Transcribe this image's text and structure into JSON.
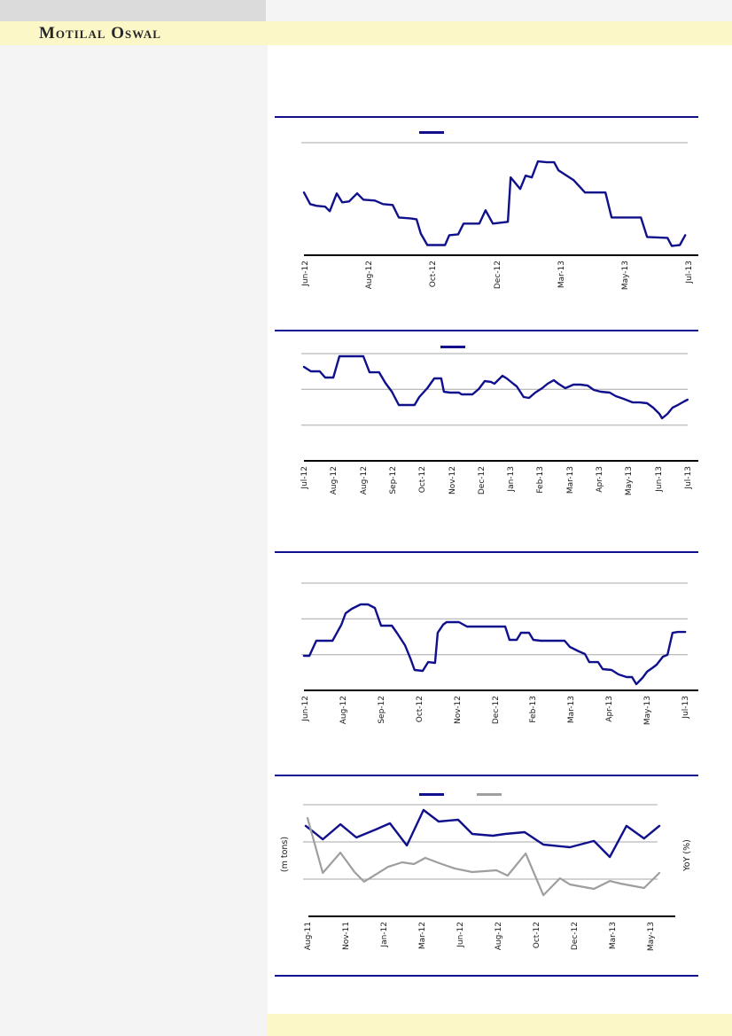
{
  "header": {
    "brand": "Motilal Oswal"
  },
  "colors": {
    "accent_navy": "#10108c",
    "series_gray": "#9e9e9e",
    "gridline_gray": "#a7a7a7",
    "banner_yellow": "#fcf7c7",
    "panel_gray": "#f4f4f4",
    "top_box_gray": "#dbdbdb"
  },
  "chart_data": [
    {
      "type": "line",
      "title": "",
      "value_scale": "y normalized: 0 = x-axis, 100 = top gridline (no y-axis tick labels visible)",
      "x_labels": [
        "Jun-12",
        "Aug-12",
        "Oct-12",
        "Dec-12",
        "Mar-13",
        "May-13",
        "Jul-13"
      ],
      "gridlines": [
        100
      ],
      "legend": [
        {
          "color": "#10108c",
          "label": ""
        }
      ],
      "series": [
        {
          "name": "navy-line",
          "color": "#10108c",
          "points": [
            [
              0,
              55.6
            ],
            [
              0.016,
              45.2
            ],
            [
              0.032,
              43.7
            ],
            [
              0.055,
              42.9
            ],
            [
              0.067,
              38.9
            ],
            [
              0.085,
              54.8
            ],
            [
              0.099,
              46.8
            ],
            [
              0.117,
              47.6
            ],
            [
              0.138,
              54.8
            ],
            [
              0.154,
              49.2
            ],
            [
              0.184,
              48.4
            ],
            [
              0.205,
              45.2
            ],
            [
              0.23,
              44.4
            ],
            [
              0.246,
              33.3
            ],
            [
              0.276,
              32.5
            ],
            [
              0.292,
              31.7
            ],
            [
              0.303,
              19
            ],
            [
              0.32,
              8.7
            ],
            [
              0.366,
              8.7
            ],
            [
              0.377,
              17.5
            ],
            [
              0.4,
              18.3
            ],
            [
              0.414,
              27.8
            ],
            [
              0.455,
              27.8
            ],
            [
              0.471,
              39.7
            ],
            [
              0.49,
              27.8
            ],
            [
              0.529,
              29.4
            ],
            [
              0.536,
              69
            ],
            [
              0.561,
              58.7
            ],
            [
              0.575,
              70.6
            ],
            [
              0.591,
              69
            ],
            [
              0.607,
              83.3
            ],
            [
              0.63,
              82.5
            ],
            [
              0.649,
              82.5
            ],
            [
              0.66,
              75.4
            ],
            [
              0.699,
              66.7
            ],
            [
              0.729,
              55.6
            ],
            [
              0.782,
              55.6
            ],
            [
              0.798,
              33.3
            ],
            [
              0.874,
              33.3
            ],
            [
              0.89,
              15.9
            ],
            [
              0.943,
              15.1
            ],
            [
              0.954,
              7.9
            ],
            [
              0.975,
              8.7
            ],
            [
              0.989,
              17.5
            ]
          ]
        }
      ]
    },
    {
      "type": "line",
      "title": "",
      "value_scale": "y normalized: 0 = x-axis, 100 = top gridline (no y-axis tick labels visible)",
      "x_labels": [
        "Jul-12",
        "Aug-12",
        "Aug-12",
        "Sep-12",
        "Oct-12",
        "Nov-12",
        "Dec-12",
        "Jan-13",
        "Feb-13",
        "Mar-13",
        "Apr-13",
        "May-13",
        "Jun-13",
        "Jul-13"
      ],
      "gridlines": [
        100,
        66.7,
        33.3
      ],
      "legend": [
        {
          "color": "#10108c",
          "label": ""
        }
      ],
      "series": [
        {
          "name": "navy-line",
          "color": "#10108c",
          "points": [
            [
              0,
              87.6
            ],
            [
              0.018,
              83.5
            ],
            [
              0.041,
              83.5
            ],
            [
              0.055,
              77.7
            ],
            [
              0.076,
              77.7
            ],
            [
              0.092,
              97.5
            ],
            [
              0.154,
              97.5
            ],
            [
              0.17,
              82.6
            ],
            [
              0.195,
              82.6
            ],
            [
              0.211,
              72.7
            ],
            [
              0.228,
              64.5
            ],
            [
              0.246,
              52.1
            ],
            [
              0.287,
              52.1
            ],
            [
              0.299,
              59.5
            ],
            [
              0.32,
              67.8
            ],
            [
              0.338,
              76.9
            ],
            [
              0.356,
              76.9
            ],
            [
              0.363,
              64.5
            ],
            [
              0.379,
              63.6
            ],
            [
              0.402,
              63.6
            ],
            [
              0.409,
              62
            ],
            [
              0.437,
              62
            ],
            [
              0.453,
              66.9
            ],
            [
              0.469,
              74.4
            ],
            [
              0.485,
              73.6
            ],
            [
              0.494,
              71.9
            ],
            [
              0.515,
              79.3
            ],
            [
              0.526,
              76.9
            ],
            [
              0.543,
              71.9
            ],
            [
              0.552,
              69.4
            ],
            [
              0.57,
              59.5
            ],
            [
              0.584,
              58.7
            ],
            [
              0.6,
              63.6
            ],
            [
              0.618,
              67.8
            ],
            [
              0.632,
              71.9
            ],
            [
              0.648,
              75.2
            ],
            [
              0.66,
              71.9
            ],
            [
              0.678,
              67.8
            ],
            [
              0.699,
              71.1
            ],
            [
              0.717,
              71.1
            ],
            [
              0.736,
              70.2
            ],
            [
              0.752,
              66.1
            ],
            [
              0.77,
              64.5
            ],
            [
              0.793,
              63.6
            ],
            [
              0.809,
              60.3
            ],
            [
              0.828,
              57.9
            ],
            [
              0.853,
              54.5
            ],
            [
              0.871,
              54.5
            ],
            [
              0.89,
              53.7
            ],
            [
              0.906,
              49.6
            ],
            [
              0.922,
              43.8
            ],
            [
              0.929,
              39.7
            ],
            [
              0.943,
              43.8
            ],
            [
              0.956,
              49.6
            ],
            [
              0.97,
              52.1
            ],
            [
              0.986,
              55.4
            ],
            [
              0.995,
              57
            ]
          ]
        }
      ]
    },
    {
      "type": "line",
      "title": "",
      "value_scale": "y normalized: 0 = x-axis, 100 = top gridline (no y-axis tick labels visible)",
      "x_labels": [
        "Jun-12",
        "Aug-12",
        "Sep-12",
        "Oct-12",
        "Nov-12",
        "Dec-12",
        "Feb-13",
        "Mar-13",
        "Apr-13",
        "May-13",
        "Jul-13"
      ],
      "gridlines": [
        100,
        66.7,
        33.3
      ],
      "legend": [],
      "series": [
        {
          "name": "navy-line",
          "color": "#10108c",
          "points": [
            [
              0,
              32.2
            ],
            [
              0.014,
              32.2
            ],
            [
              0.032,
              46.3
            ],
            [
              0.074,
              46.3
            ],
            [
              0.097,
              61.2
            ],
            [
              0.108,
              71.9
            ],
            [
              0.124,
              76
            ],
            [
              0.147,
              80.2
            ],
            [
              0.166,
              80.2
            ],
            [
              0.184,
              76.9
            ],
            [
              0.2,
              60.3
            ],
            [
              0.228,
              60.3
            ],
            [
              0.241,
              53.7
            ],
            [
              0.262,
              42.1
            ],
            [
              0.276,
              29.8
            ],
            [
              0.287,
              19
            ],
            [
              0.308,
              18.2
            ],
            [
              0.322,
              26.4
            ],
            [
              0.34,
              25.6
            ],
            [
              0.347,
              53.7
            ],
            [
              0.361,
              61.2
            ],
            [
              0.37,
              63.6
            ],
            [
              0.402,
              63.6
            ],
            [
              0.423,
              59.5
            ],
            [
              0.522,
              59.5
            ],
            [
              0.533,
              47.1
            ],
            [
              0.552,
              47.1
            ],
            [
              0.563,
              53.7
            ],
            [
              0.584,
              53.7
            ],
            [
              0.595,
              47.1
            ],
            [
              0.614,
              46.3
            ],
            [
              0.676,
              46.3
            ],
            [
              0.69,
              40.5
            ],
            [
              0.713,
              36.4
            ],
            [
              0.729,
              33.9
            ],
            [
              0.74,
              26.4
            ],
            [
              0.763,
              26.4
            ],
            [
              0.775,
              19.8
            ],
            [
              0.798,
              19
            ],
            [
              0.816,
              14.9
            ],
            [
              0.837,
              12.4
            ],
            [
              0.851,
              12.4
            ],
            [
              0.862,
              5.8
            ],
            [
              0.878,
              11.6
            ],
            [
              0.89,
              17.4
            ],
            [
              0.906,
              21.5
            ],
            [
              0.915,
              24
            ],
            [
              0.931,
              31.4
            ],
            [
              0.943,
              33.1
            ],
            [
              0.956,
              53.7
            ],
            [
              0.97,
              54.5
            ],
            [
              0.989,
              54.5
            ]
          ]
        }
      ]
    },
    {
      "type": "line",
      "title": "",
      "value_scale": "y normalized: 0 = x-axis, 100 = top gridline (no y-axis tick labels visible)",
      "x_labels": [
        "Aug-11",
        "Nov-11",
        "Jan-12",
        "Mar-12",
        "Jun-12",
        "Aug-12",
        "Oct-12",
        "Dec-12",
        "Mar-13",
        "May-13"
      ],
      "ylabel_left": "(m tons)",
      "ylabel_right": "YoY (%)",
      "gridlines": [
        100,
        66.7,
        33.3
      ],
      "legend": [
        {
          "color": "#10108c",
          "label": ""
        },
        {
          "color": "#9e9e9e",
          "label": ""
        }
      ],
      "series": [
        {
          "name": "navy-line",
          "color": "#10108c",
          "points": [
            [
              0,
              81
            ],
            [
              0.023,
              75.4
            ],
            [
              0.048,
              69
            ],
            [
              0.098,
              82.5
            ],
            [
              0.143,
              70.6
            ],
            [
              0.198,
              77.8
            ],
            [
              0.238,
              83.3
            ],
            [
              0.286,
              63.5
            ],
            [
              0.333,
              95.2
            ],
            [
              0.376,
              84.9
            ],
            [
              0.431,
              86.5
            ],
            [
              0.471,
              73.8
            ],
            [
              0.529,
              72.2
            ],
            [
              0.564,
              73.8
            ],
            [
              0.619,
              75.4
            ],
            [
              0.672,
              64.3
            ],
            [
              0.747,
              61.9
            ],
            [
              0.815,
              67.5
            ],
            [
              0.86,
              53.2
            ],
            [
              0.907,
              81
            ],
            [
              0.957,
              69.8
            ],
            [
              1,
              81
            ]
          ]
        },
        {
          "name": "gray-line",
          "color": "#9e9e9e",
          "points": [
            [
              0.005,
              88.1
            ],
            [
              0.048,
              38.9
            ],
            [
              0.098,
              57.1
            ],
            [
              0.138,
              39.7
            ],
            [
              0.165,
              31
            ],
            [
              0.233,
              44.4
            ],
            [
              0.273,
              48.4
            ],
            [
              0.306,
              46.8
            ],
            [
              0.338,
              52.4
            ],
            [
              0.378,
              47.6
            ],
            [
              0.421,
              42.9
            ],
            [
              0.471,
              39.7
            ],
            [
              0.539,
              41.3
            ],
            [
              0.571,
              36.5
            ],
            [
              0.622,
              56.3
            ],
            [
              0.672,
              19
            ],
            [
              0.719,
              34.1
            ],
            [
              0.747,
              28.6
            ],
            [
              0.815,
              24.6
            ],
            [
              0.86,
              31.7
            ],
            [
              0.89,
              29.4
            ],
            [
              0.957,
              25.4
            ],
            [
              1,
              38.9
            ]
          ]
        }
      ]
    }
  ]
}
